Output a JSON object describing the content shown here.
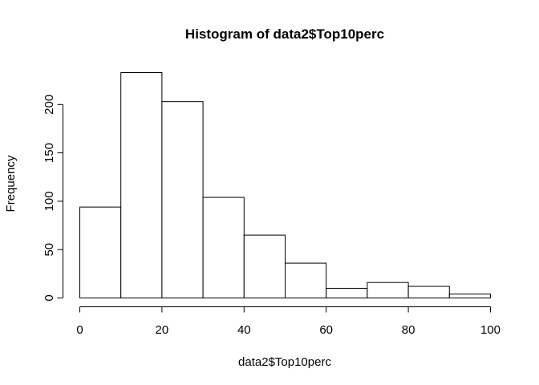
{
  "chart_data": {
    "type": "bar",
    "title": "Histogram of data2$Top10perc",
    "xlabel": "data2$Top10perc",
    "ylabel": "Frequency",
    "bins": [
      {
        "x0": 0,
        "x1": 10,
        "count": 94
      },
      {
        "x0": 10,
        "x1": 20,
        "count": 233
      },
      {
        "x0": 20,
        "x1": 30,
        "count": 203
      },
      {
        "x0": 30,
        "x1": 40,
        "count": 104
      },
      {
        "x0": 40,
        "x1": 50,
        "count": 65
      },
      {
        "x0": 50,
        "x1": 60,
        "count": 36
      },
      {
        "x0": 60,
        "x1": 70,
        "count": 10
      },
      {
        "x0": 70,
        "x1": 80,
        "count": 16
      },
      {
        "x0": 80,
        "x1": 90,
        "count": 12
      },
      {
        "x0": 90,
        "x1": 100,
        "count": 4
      }
    ],
    "xticks": [
      0,
      20,
      40,
      60,
      80,
      100
    ],
    "yticks": [
      0,
      50,
      100,
      150,
      200
    ],
    "xlim": [
      0,
      100
    ],
    "ylim": [
      0,
      233
    ],
    "grid": false,
    "legend": "none",
    "colors": {
      "bar_fill": "#ffffff",
      "bar_stroke": "#000000"
    }
  }
}
